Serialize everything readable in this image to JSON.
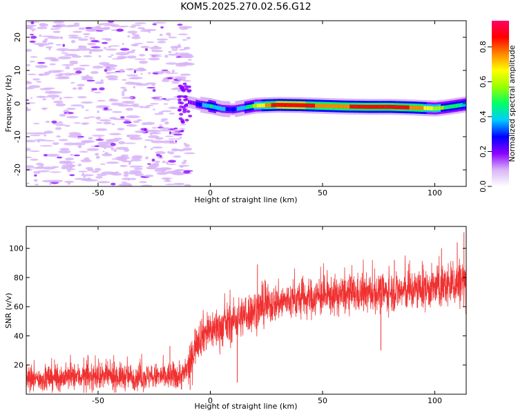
{
  "page_title": "KOM5.2025.270.02.56.G12",
  "chart_data": [
    {
      "type": "heatmap",
      "title": "KOM5.2025.270.02.56.G12",
      "xlabel": "Height of straight line (km)",
      "ylabel": "Frequency (Hz)",
      "xlim": [
        -82,
        114
      ],
      "ylim": [
        -25,
        25
      ],
      "x_ticks": [
        -50,
        0,
        50,
        100
      ],
      "x_tick_labels": [
        "-50",
        "0",
        "50",
        "100"
      ],
      "y_ticks": [
        20,
        10,
        0,
        -10,
        -20
      ],
      "y_tick_labels": [
        "20",
        "10",
        "0",
        "-10",
        "-20"
      ],
      "colorbar": {
        "label": "Normalized spectral amplitude",
        "range": [
          0,
          0.95
        ],
        "ticks": [
          0.0,
          0.2,
          0.4,
          0.6,
          0.8
        ],
        "tick_labels": [
          "0.0",
          "0.2",
          "0.4",
          "0.6",
          "0.8"
        ],
        "colors": [
          "#ffffff",
          "#d8b4f8",
          "#8a00ff",
          "#0000ff",
          "#00ccff",
          "#00ff66",
          "#99ff00",
          "#ffff00",
          "#ff8800",
          "#ff0000",
          "#ff0066"
        ]
      },
      "noise_region": {
        "x_from": -82,
        "x_to": -9,
        "freq_from": -25,
        "freq_to": 25
      },
      "signal_track": {
        "x": [
          -10,
          -5,
          0,
          5,
          10,
          15,
          20,
          30,
          40,
          50,
          60,
          70,
          80,
          90,
          100,
          105,
          110,
          114
        ],
        "freq": [
          0.5,
          -0.3,
          -0.8,
          -1.6,
          -1.8,
          -1.2,
          -0.6,
          -0.4,
          -0.5,
          -0.7,
          -0.9,
          -1.0,
          -1.0,
          -1.2,
          -1.5,
          -1.1,
          -0.6,
          -0.2
        ],
        "amplitude": [
          0.15,
          0.3,
          0.45,
          0.35,
          0.3,
          0.4,
          0.6,
          0.9,
          0.9,
          0.75,
          0.8,
          0.85,
          0.85,
          0.8,
          0.6,
          0.5,
          0.45,
          0.4
        ]
      }
    },
    {
      "type": "line",
      "xlabel": "Height of straight line (km)",
      "ylabel": "SNR (v/v)",
      "xlim": [
        -82,
        114
      ],
      "ylim": [
        0,
        115
      ],
      "x_ticks": [
        -50,
        0,
        50,
        100
      ],
      "x_tick_labels": [
        "-50",
        "0",
        "50",
        "100"
      ],
      "y_ticks": [
        20,
        40,
        60,
        80,
        100
      ],
      "y_tick_labels": [
        "20",
        "40",
        "60",
        "80",
        "100"
      ],
      "series": [
        {
          "color": "#f03030",
          "x": [
            -82,
            -70,
            -60,
            -50,
            -40,
            -30,
            -20,
            -12,
            -9,
            -6,
            -3,
            0,
            5,
            10,
            15,
            20,
            30,
            40,
            50,
            60,
            70,
            80,
            90,
            100,
            110,
            114
          ],
          "mean": [
            10,
            11,
            12,
            12,
            12,
            12,
            12,
            13,
            20,
            38,
            42,
            44,
            46,
            50,
            54,
            58,
            63,
            65,
            67,
            68,
            69,
            70,
            71,
            73,
            76,
            78
          ],
          "spread": [
            8,
            9,
            9,
            9,
            9,
            9,
            9,
            10,
            12,
            14,
            14,
            14,
            14,
            14,
            14,
            14,
            13,
            13,
            13,
            13,
            13,
            13,
            14,
            14,
            16,
            18
          ],
          "extremes": [
            {
              "x": -18,
              "y": 33
            },
            {
              "x": -9,
              "y": 3
            },
            {
              "x": 12,
              "y": 8
            },
            {
              "x": 21,
              "y": 89
            },
            {
              "x": 76,
              "y": 30
            },
            {
              "x": 82,
              "y": 92
            },
            {
              "x": 103,
              "y": 100
            },
            {
              "x": 110,
              "y": 104
            },
            {
              "x": 113,
              "y": 111
            }
          ]
        }
      ]
    }
  ]
}
